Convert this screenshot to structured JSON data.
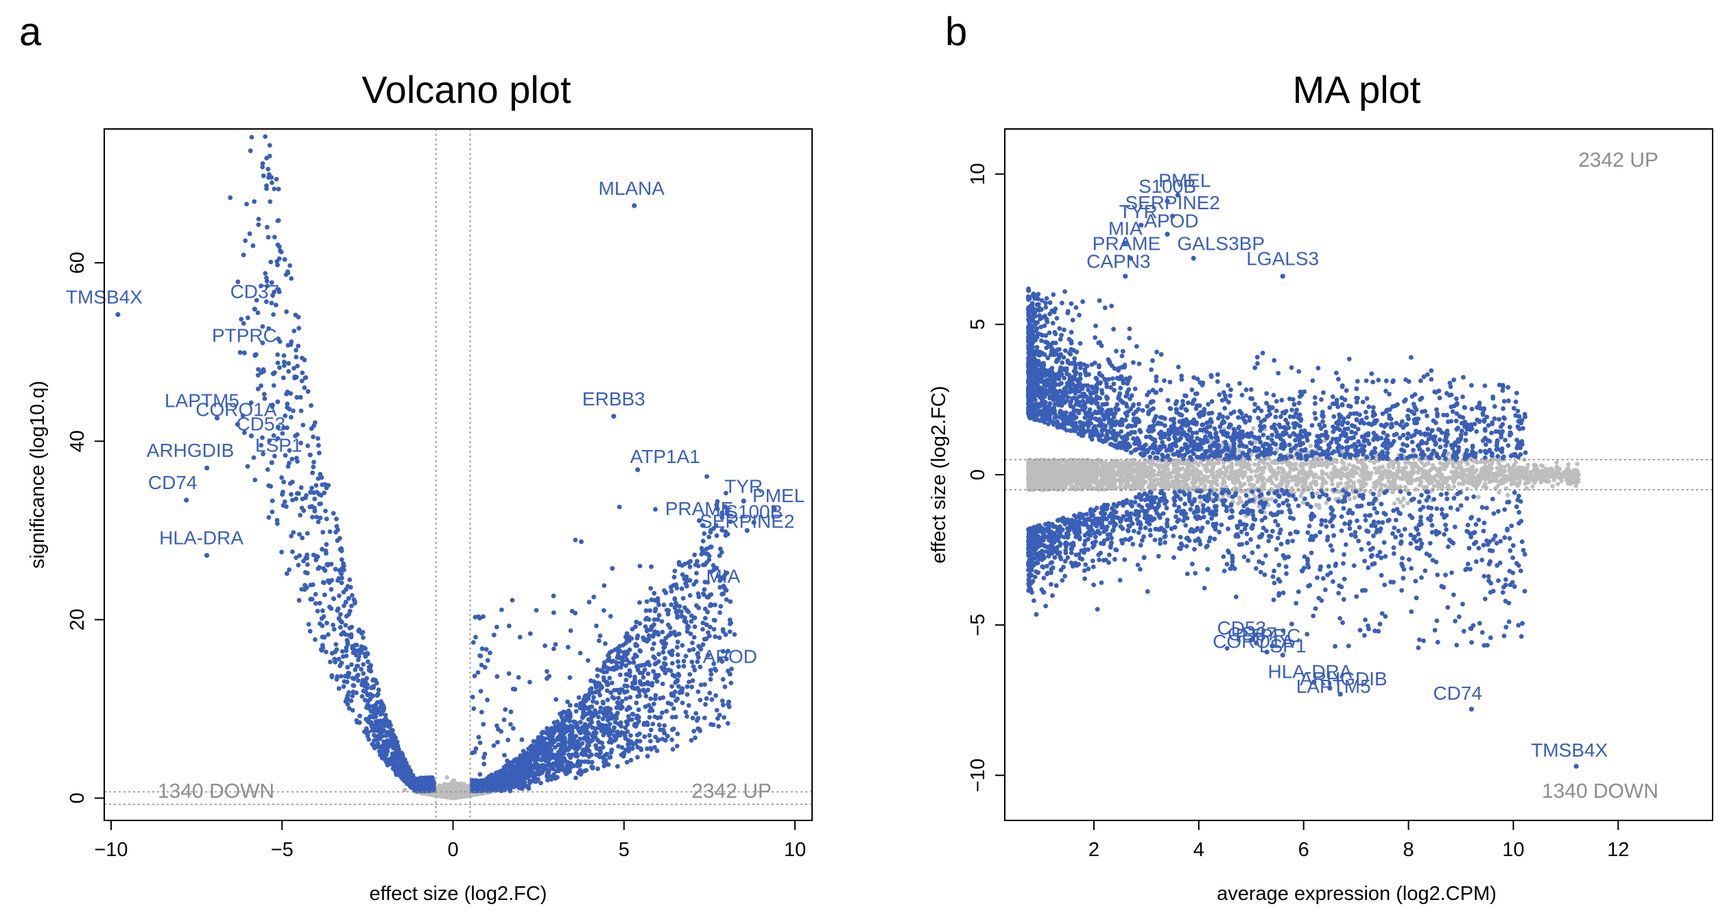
{
  "panel_labels": [
    "a",
    "b"
  ],
  "colors": {
    "significant": "#3a5fb8",
    "nonsignificant": "#bdbdbd",
    "annotation": "#8c8c8c",
    "axis": "#000000"
  },
  "chart_data": [
    {
      "type": "scatter",
      "title": "Volcano plot",
      "xlabel": "effect size (log2.FC)",
      "ylabel": "significance (log10.q)",
      "xlim": [
        -10.2,
        10.5
      ],
      "ylim": [
        -2.5,
        75
      ],
      "x_ticks": [
        -10,
        -5,
        0,
        5,
        10
      ],
      "y_ticks": [
        0,
        20,
        40,
        60
      ],
      "vlines": [
        -0.5,
        0.5
      ],
      "hlines": [
        0.7,
        -0.7
      ],
      "counts": {
        "down": "1340 DOWN",
        "up": "2342 UP"
      },
      "labeled_genes": [
        {
          "label": "TMSB4X",
          "x": -9.8,
          "y": 54.2
        },
        {
          "label": "CD37",
          "x": -5.8,
          "y": 54.8
        },
        {
          "label": "PTPRC",
          "x": -6.1,
          "y": 49.9
        },
        {
          "label": "LAPTM5",
          "x": -6.9,
          "y": 42.6
        },
        {
          "label": "CORO1A",
          "x": -6.3,
          "y": 41.9
        },
        {
          "label": "CD53",
          "x": -5.9,
          "y": 40.6
        },
        {
          "label": "LSP1",
          "x": -5.3,
          "y": 37.6
        },
        {
          "label": "ARHGDIB",
          "x": -7.2,
          "y": 37.0
        },
        {
          "label": "CD74",
          "x": -7.8,
          "y": 33.4
        },
        {
          "label": "HLA-DRA",
          "x": -7.2,
          "y": 27.2
        },
        {
          "label": "MLANA",
          "x": 5.3,
          "y": 66.4
        },
        {
          "label": "ERBB3",
          "x": 4.7,
          "y": 42.8
        },
        {
          "label": "ATP1A1",
          "x": 5.4,
          "y": 36.8
        },
        {
          "label": "TYR",
          "x": 8.5,
          "y": 33.3
        },
        {
          "label": "PMEL",
          "x": 9.4,
          "y": 32.4
        },
        {
          "label": "PRAME",
          "x": 7.2,
          "y": 31.1
        },
        {
          "label": "S100B",
          "x": 8.8,
          "y": 30.9
        },
        {
          "label": "SERPINE2",
          "x": 8.6,
          "y": 30.0
        },
        {
          "label": "MIA",
          "x": 7.9,
          "y": 22.9
        },
        {
          "label": "APOD",
          "x": 8.1,
          "y": 13.9
        }
      ],
      "background_points": "about 7000 genes; non-significant in grey near x=0, significant in blue"
    },
    {
      "type": "scatter",
      "title": "MA plot",
      "xlabel": "average expression (log2.CPM)",
      "ylabel": "effect size (log2.FC)",
      "xlim": [
        0.3,
        13.8
      ],
      "ylim": [
        -11.5,
        11.5
      ],
      "x_ticks": [
        2,
        4,
        6,
        8,
        10,
        12
      ],
      "y_ticks": [
        -10,
        -5,
        0,
        5,
        10
      ],
      "hlines": [
        0.5,
        -0.5
      ],
      "counts": {
        "down": "1340 DOWN",
        "up": "2342 UP"
      },
      "labeled_genes": [
        {
          "label": "PMEL",
          "x": 3.6,
          "y": 9.3
        },
        {
          "label": "S100B",
          "x": 3.4,
          "y": 9.1
        },
        {
          "label": "SERPINE2",
          "x": 3.5,
          "y": 8.6
        },
        {
          "label": "TYR",
          "x": 2.9,
          "y": 8.3
        },
        {
          "label": "APOD",
          "x": 3.4,
          "y": 8.0
        },
        {
          "label": "MIA",
          "x": 2.6,
          "y": 7.7
        },
        {
          "label": "PRAME",
          "x": 2.7,
          "y": 7.2
        },
        {
          "label": "GALS3BP",
          "x": 3.9,
          "y": 7.2
        },
        {
          "label": "CAPN3",
          "x": 2.6,
          "y": 6.6
        },
        {
          "label": "LGALS3",
          "x": 5.6,
          "y": 6.6
        },
        {
          "label": "CD53",
          "x": 5.0,
          "y": -5.5
        },
        {
          "label": "CD37",
          "x": 5.1,
          "y": -5.6
        },
        {
          "label": "PTPRC",
          "x": 5.4,
          "y": -5.7
        },
        {
          "label": "CORO1A",
          "x": 5.3,
          "y": -5.9
        },
        {
          "label": "LSP1",
          "x": 5.6,
          "y": -6.0
        },
        {
          "label": "HLA-DRA",
          "x": 6.2,
          "y": -6.9
        },
        {
          "label": "ARHGDIB",
          "x": 6.5,
          "y": -7.1
        },
        {
          "label": "LAPTM5",
          "x": 6.7,
          "y": -7.3
        },
        {
          "label": "CD74",
          "x": 9.2,
          "y": -7.8
        },
        {
          "label": "TMSB4X",
          "x": 11.2,
          "y": -9.7
        }
      ],
      "background_points": "about 7000 genes; non-significant in grey near y=0, significant in blue"
    }
  ]
}
